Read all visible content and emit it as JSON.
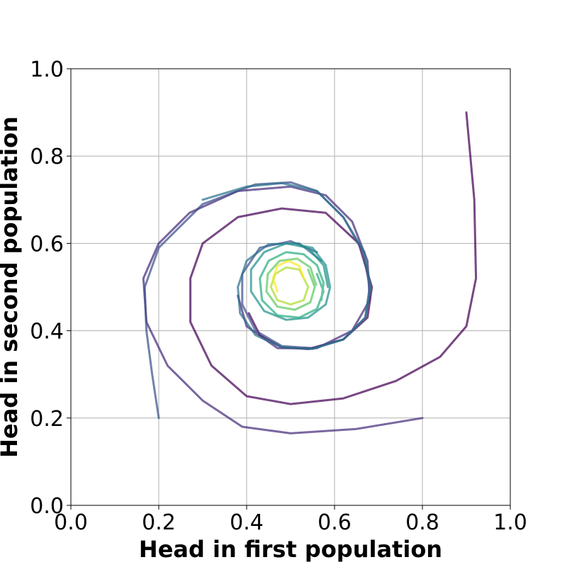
{
  "chart_data": {
    "type": "line",
    "title": "",
    "xlabel": "Head in first population",
    "ylabel": "Head in second population",
    "xlim": [
      0.0,
      1.0
    ],
    "ylim": [
      0.0,
      1.0
    ],
    "xticks": [
      "0.0",
      "0.2",
      "0.4",
      "0.6",
      "0.8",
      "1.0"
    ],
    "yticks": [
      "0.0",
      "0.2",
      "0.4",
      "0.6",
      "0.8",
      "1.0"
    ],
    "grid": true,
    "legend": "none",
    "series": [
      {
        "color": "#440154",
        "points": [
          [
            0.9,
            0.9
          ],
          [
            0.918,
            0.7
          ],
          [
            0.922,
            0.52
          ],
          [
            0.9,
            0.41
          ],
          [
            0.84,
            0.34
          ],
          [
            0.74,
            0.285
          ],
          [
            0.62,
            0.245
          ],
          [
            0.5,
            0.232
          ],
          [
            0.4,
            0.25
          ],
          [
            0.32,
            0.32
          ],
          [
            0.272,
            0.42
          ],
          [
            0.272,
            0.52
          ],
          [
            0.3,
            0.6
          ],
          [
            0.38,
            0.66
          ],
          [
            0.48,
            0.68
          ],
          [
            0.58,
            0.67
          ],
          [
            0.655,
            0.6
          ],
          [
            0.685,
            0.5
          ],
          [
            0.675,
            0.43
          ],
          [
            0.62,
            0.38
          ],
          [
            0.54,
            0.358
          ],
          [
            0.48,
            0.362
          ],
          [
            0.43,
            0.39
          ],
          [
            0.405,
            0.44
          ]
        ]
      },
      {
        "color": "#472d7b",
        "points": [
          [
            0.8,
            0.2
          ],
          [
            0.65,
            0.175
          ],
          [
            0.5,
            0.165
          ],
          [
            0.39,
            0.18
          ],
          [
            0.3,
            0.24
          ],
          [
            0.22,
            0.32
          ],
          [
            0.172,
            0.42
          ],
          [
            0.165,
            0.52
          ],
          [
            0.2,
            0.6
          ],
          [
            0.27,
            0.67
          ],
          [
            0.38,
            0.72
          ],
          [
            0.5,
            0.73
          ],
          [
            0.58,
            0.71
          ],
          [
            0.64,
            0.65
          ],
          [
            0.675,
            0.56
          ],
          [
            0.68,
            0.47
          ],
          [
            0.64,
            0.4
          ],
          [
            0.56,
            0.36
          ],
          [
            0.47,
            0.36
          ],
          [
            0.4,
            0.41
          ],
          [
            0.38,
            0.48
          ]
        ]
      },
      {
        "color": "#3b528b",
        "points": [
          [
            0.2,
            0.2
          ],
          [
            0.185,
            0.3
          ],
          [
            0.172,
            0.4
          ],
          [
            0.168,
            0.5
          ],
          [
            0.2,
            0.59
          ],
          [
            0.3,
            0.69
          ],
          [
            0.42,
            0.735
          ],
          [
            0.5,
            0.74
          ],
          [
            0.56,
            0.72
          ],
          [
            0.62,
            0.66
          ],
          [
            0.665,
            0.58
          ],
          [
            0.68,
            0.5
          ],
          [
            0.67,
            0.43
          ],
          [
            0.62,
            0.38
          ],
          [
            0.55,
            0.36
          ],
          [
            0.48,
            0.365
          ],
          [
            0.42,
            0.4
          ],
          [
            0.39,
            0.46
          ],
          [
            0.39,
            0.53
          ],
          [
            0.43,
            0.59
          ],
          [
            0.5,
            0.605
          ],
          [
            0.56,
            0.58
          ]
        ]
      },
      {
        "color": "#2c728e",
        "points": [
          [
            0.3,
            0.7
          ],
          [
            0.4,
            0.73
          ],
          [
            0.48,
            0.738
          ],
          [
            0.56,
            0.72
          ],
          [
            0.62,
            0.66
          ],
          [
            0.668,
            0.58
          ],
          [
            0.682,
            0.5
          ],
          [
            0.67,
            0.43
          ],
          [
            0.62,
            0.38
          ],
          [
            0.55,
            0.358
          ],
          [
            0.48,
            0.362
          ],
          [
            0.42,
            0.39
          ],
          [
            0.385,
            0.44
          ],
          [
            0.38,
            0.5
          ],
          [
            0.4,
            0.56
          ],
          [
            0.45,
            0.598
          ],
          [
            0.52,
            0.6
          ],
          [
            0.57,
            0.56
          ]
        ]
      },
      {
        "color": "#21918c",
        "points": [
          [
            0.5,
            0.6
          ],
          [
            0.55,
            0.59
          ],
          [
            0.58,
            0.55
          ],
          [
            0.59,
            0.5
          ],
          [
            0.58,
            0.46
          ],
          [
            0.54,
            0.43
          ],
          [
            0.49,
            0.425
          ],
          [
            0.44,
            0.445
          ],
          [
            0.41,
            0.49
          ],
          [
            0.41,
            0.54
          ],
          [
            0.44,
            0.58
          ],
          [
            0.49,
            0.6
          ],
          [
            0.54,
            0.59
          ],
          [
            0.575,
            0.55
          ],
          [
            0.585,
            0.5
          ]
        ]
      },
      {
        "color": "#28ae80",
        "points": [
          [
            0.56,
            0.53
          ],
          [
            0.575,
            0.49
          ],
          [
            0.56,
            0.45
          ],
          [
            0.52,
            0.43
          ],
          [
            0.47,
            0.435
          ],
          [
            0.435,
            0.47
          ],
          [
            0.43,
            0.52
          ],
          [
            0.45,
            0.56
          ],
          [
            0.49,
            0.58
          ],
          [
            0.53,
            0.575
          ],
          [
            0.56,
            0.55
          ],
          [
            0.575,
            0.51
          ],
          [
            0.57,
            0.47
          ]
        ]
      },
      {
        "color": "#5ec962",
        "points": [
          [
            0.54,
            0.54
          ],
          [
            0.555,
            0.5
          ],
          [
            0.545,
            0.465
          ],
          [
            0.51,
            0.448
          ],
          [
            0.47,
            0.455
          ],
          [
            0.445,
            0.49
          ],
          [
            0.448,
            0.53
          ],
          [
            0.475,
            0.56
          ],
          [
            0.515,
            0.565
          ],
          [
            0.545,
            0.545
          ],
          [
            0.558,
            0.505
          ]
        ]
      },
      {
        "color": "#addc30",
        "points": [
          [
            0.52,
            0.54
          ],
          [
            0.54,
            0.5
          ],
          [
            0.53,
            0.47
          ],
          [
            0.5,
            0.46
          ],
          [
            0.47,
            0.47
          ],
          [
            0.455,
            0.5
          ],
          [
            0.465,
            0.53
          ],
          [
            0.49,
            0.545
          ],
          [
            0.52,
            0.54
          ]
        ]
      },
      {
        "color": "#fde725",
        "points": [
          [
            0.53,
            0.52
          ],
          [
            0.52,
            0.548
          ],
          [
            0.495,
            0.56
          ],
          [
            0.47,
            0.548
          ],
          [
            0.46,
            0.52
          ],
          [
            0.47,
            0.49
          ]
        ]
      }
    ]
  }
}
